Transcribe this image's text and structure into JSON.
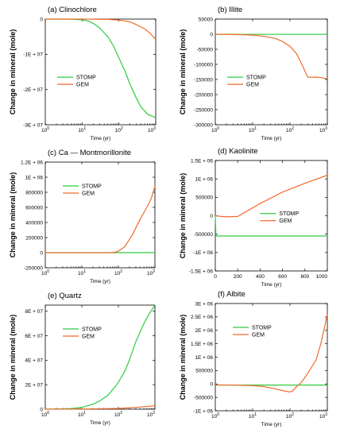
{
  "colors": {
    "stomp": "#2ecc40",
    "gem": "#f26b2b"
  },
  "chart_data": [
    {
      "type": "line",
      "title": "(a) Clinochlore",
      "xlabel": "Time (yr)",
      "ylabel": "Change in mineral (mole)",
      "xscale": "log",
      "xlim": [
        1,
        1000
      ],
      "ylim": [
        -30000000,
        0
      ],
      "xticks": [
        {
          "v": 1,
          "b": "10",
          "e": "0"
        },
        {
          "v": 10,
          "b": "10",
          "e": "1"
        },
        {
          "v": 100,
          "b": "10",
          "e": "2"
        },
        {
          "v": 1000,
          "b": "10",
          "e": "3"
        }
      ],
      "yticks": [
        {
          "v": 0,
          "t": "0"
        },
        {
          "v": -10000000,
          "t": "-1E + 07"
        },
        {
          "v": -20000000,
          "t": "-2E + 07"
        },
        {
          "v": -30000000,
          "t": "-3E + 07"
        }
      ],
      "legend": "center-left",
      "series": [
        {
          "name": "STOMP",
          "color": "stomp",
          "x": [
            1,
            5,
            10,
            15,
            20,
            30,
            50,
            70,
            100,
            150,
            200,
            300,
            400,
            600,
            1000
          ],
          "y": [
            0,
            -30000,
            -200000,
            -600000,
            -1200000,
            -2500000,
            -5000000,
            -7500000,
            -11000000,
            -15000000,
            -18500000,
            -22500000,
            -25000000,
            -27000000,
            -28000000
          ]
        },
        {
          "name": "GEM",
          "color": "gem",
          "x": [
            1,
            10,
            50,
            100,
            200,
            300,
            500,
            700,
            1000
          ],
          "y": [
            0,
            -10000,
            -100000,
            -300000,
            -800000,
            -1600000,
            -2800000,
            -4000000,
            -5800000
          ]
        }
      ]
    },
    {
      "type": "line",
      "title": "(b) Illite",
      "xlabel": "Time (yr)",
      "ylabel": "Change in mineral (mole)",
      "xscale": "log",
      "xlim": [
        1,
        1000
      ],
      "ylim": [
        -300000,
        50000
      ],
      "xticks": [
        {
          "v": 1,
          "b": "10",
          "e": "0"
        },
        {
          "v": 10,
          "b": "10",
          "e": "1"
        },
        {
          "v": 100,
          "b": "10",
          "e": "2"
        },
        {
          "v": 1000,
          "b": "10",
          "e": "3"
        }
      ],
      "yticks": [
        {
          "v": 50000,
          "t": "50000"
        },
        {
          "v": 0,
          "t": "0"
        },
        {
          "v": -50000,
          "t": "-50000"
        },
        {
          "v": -100000,
          "t": "-100000"
        },
        {
          "v": -150000,
          "t": "-150000"
        },
        {
          "v": -200000,
          "t": "-200000"
        },
        {
          "v": -250000,
          "t": "-250000"
        },
        {
          "v": -300000,
          "t": "-300000"
        }
      ],
      "legend": "center-left",
      "series": [
        {
          "name": "STOMP",
          "color": "stomp",
          "x": [
            1,
            1000
          ],
          "y": [
            -500,
            -500
          ]
        },
        {
          "name": "GEM",
          "color": "gem",
          "x": [
            1,
            5,
            10,
            20,
            40,
            60,
            100,
            150,
            200,
            300,
            500,
            700,
            1000
          ],
          "y": [
            0,
            -1500,
            -3000,
            -7000,
            -14000,
            -23000,
            -40000,
            -65000,
            -95000,
            -143000,
            -142000,
            -144000,
            -148000
          ]
        }
      ]
    },
    {
      "type": "line",
      "title": "(c) Ca — Montmorillonite",
      "xlabel": "Time (yr)",
      "ylabel": "Change in mineral (mole)",
      "xscale": "log",
      "xlim": [
        1,
        1000
      ],
      "ylim": [
        -200000,
        1200000
      ],
      "xticks": [
        {
          "v": 1,
          "b": "10",
          "e": "0"
        },
        {
          "v": 10,
          "b": "10",
          "e": "1"
        },
        {
          "v": 100,
          "b": "10",
          "e": "2"
        },
        {
          "v": 1000,
          "b": "10",
          "e": "3"
        }
      ],
      "yticks": [
        {
          "v": 1200000,
          "t": "1.2E + 06"
        },
        {
          "v": 1000000,
          "t": "1E + 06"
        },
        {
          "v": 800000,
          "t": "800000"
        },
        {
          "v": 600000,
          "t": "600000"
        },
        {
          "v": 400000,
          "t": "400000"
        },
        {
          "v": 200000,
          "t": "200000"
        },
        {
          "v": 0,
          "t": "0"
        },
        {
          "v": -200000,
          "t": "-200000"
        }
      ],
      "legend": "top-left",
      "series": [
        {
          "name": "STOMP",
          "color": "stomp",
          "x": [
            1,
            1000
          ],
          "y": [
            0,
            0
          ]
        },
        {
          "name": "GEM",
          "color": "gem",
          "x": [
            1,
            10,
            60,
            80,
            100,
            150,
            250,
            400,
            600,
            800,
            1000
          ],
          "y": [
            0,
            0,
            0,
            5000,
            20000,
            80000,
            250000,
            450000,
            600000,
            720000,
            880000
          ]
        }
      ]
    },
    {
      "type": "line",
      "title": "(d) Kaolinite",
      "xlabel": "Time (yr)",
      "ylabel": "Change in mineral (mole)",
      "xscale": "linear",
      "xlim": [
        0,
        1000
      ],
      "ylim": [
        -1500000,
        1500000
      ],
      "xticks": [
        {
          "v": 0,
          "t": "0"
        },
        {
          "v": 200,
          "t": "200"
        },
        {
          "v": 400,
          "t": "400"
        },
        {
          "v": 600,
          "t": "600"
        },
        {
          "v": 800,
          "t": "800"
        },
        {
          "v": 1000,
          "t": "1000"
        }
      ],
      "yticks": [
        {
          "v": 1500000,
          "t": "1.5E + 06"
        },
        {
          "v": 1000000,
          "t": "1E + 06"
        },
        {
          "v": 500000,
          "t": "500000"
        },
        {
          "v": 0,
          "t": "0"
        },
        {
          "v": -500000,
          "t": "-500000"
        },
        {
          "v": -1000000,
          "t": "-1E + 06"
        },
        {
          "v": -1500000,
          "t": "-1.5E + 06"
        }
      ],
      "legend": "center-right",
      "series": [
        {
          "name": "STOMP",
          "color": "stomp",
          "x": [
            0,
            5,
            10,
            1000
          ],
          "y": [
            0,
            -500000,
            -550000,
            -550000
          ]
        },
        {
          "name": "GEM",
          "color": "gem",
          "x": [
            0,
            50,
            100,
            200,
            400,
            600,
            800,
            1000
          ],
          "y": [
            0,
            -20000,
            -30000,
            -20000,
            330000,
            640000,
            880000,
            1100000
          ]
        }
      ]
    },
    {
      "type": "line",
      "title": "(e) Quartz",
      "xlabel": "Time (yr)",
      "ylabel": "Change in mineral (mole)",
      "xscale": "log",
      "xlim": [
        1,
        1000
      ],
      "ylim": [
        0,
        85000000
      ],
      "xticks": [
        {
          "v": 1,
          "b": "10",
          "e": "0"
        },
        {
          "v": 10,
          "b": "10",
          "e": "1"
        },
        {
          "v": 100,
          "b": "10",
          "e": "2"
        },
        {
          "v": 1000,
          "b": "10",
          "e": "3"
        }
      ],
      "yticks": [
        {
          "v": 80000000,
          "t": "8E + 07"
        },
        {
          "v": 60000000,
          "t": "6E + 07"
        },
        {
          "v": 40000000,
          "t": "4E + 07"
        },
        {
          "v": 20000000,
          "t": "2E + 07"
        },
        {
          "v": 0,
          "t": "0"
        }
      ],
      "legend": "top-left",
      "series": [
        {
          "name": "STOMP",
          "color": "stomp",
          "x": [
            1,
            5,
            10,
            20,
            30,
            50,
            80,
            100,
            150,
            200,
            300,
            500,
            700,
            1000
          ],
          "y": [
            0,
            400000,
            1500000,
            4000000,
            6500000,
            11000000,
            18000000,
            22000000,
            31000000,
            40000000,
            55000000,
            70000000,
            78000000,
            85000000
          ]
        },
        {
          "name": "GEM",
          "color": "gem",
          "x": [
            1,
            10,
            100,
            300,
            1000
          ],
          "y": [
            0,
            100000,
            600000,
            1500000,
            2800000
          ]
        }
      ]
    },
    {
      "type": "line",
      "title": "(f) Albite",
      "xlabel": "Time (yr)",
      "ylabel": "Change in mineral (mole)",
      "xscale": "log",
      "xlim": [
        1,
        1000
      ],
      "ylim": [
        -1000000,
        3000000
      ],
      "xticks": [
        {
          "v": 1,
          "b": "10",
          "e": "0"
        },
        {
          "v": 10,
          "b": "10",
          "e": "1"
        },
        {
          "v": 100,
          "b": "10",
          "e": "2"
        },
        {
          "v": 1000,
          "b": "10",
          "e": "3"
        }
      ],
      "yticks": [
        {
          "v": 3000000,
          "t": "3E + 06"
        },
        {
          "v": 2500000,
          "t": "2.5E + 06"
        },
        {
          "v": 2000000,
          "t": "2E + 06"
        },
        {
          "v": 1500000,
          "t": "1.5E + 06"
        },
        {
          "v": 1000000,
          "t": "1E + 06"
        },
        {
          "v": 500000,
          "t": "500000"
        },
        {
          "v": 0,
          "t": "0"
        },
        {
          "v": -500000,
          "t": "-500000"
        },
        {
          "v": -1000000,
          "t": "-1E + 06"
        }
      ],
      "legend": "top-left",
      "series": [
        {
          "name": "STOMP",
          "color": "stomp",
          "x": [
            1,
            1000
          ],
          "y": [
            -40000,
            -40000
          ]
        },
        {
          "name": "GEM",
          "color": "gem",
          "x": [
            1,
            5,
            10,
            20,
            40,
            70,
            100,
            120,
            150,
            200,
            300,
            500,
            700,
            1000
          ],
          "y": [
            -30000,
            -50000,
            -60000,
            -100000,
            -180000,
            -260000,
            -300000,
            -250000,
            -100000,
            50000,
            400000,
            900000,
            1600000,
            2600000
          ]
        }
      ]
    }
  ]
}
